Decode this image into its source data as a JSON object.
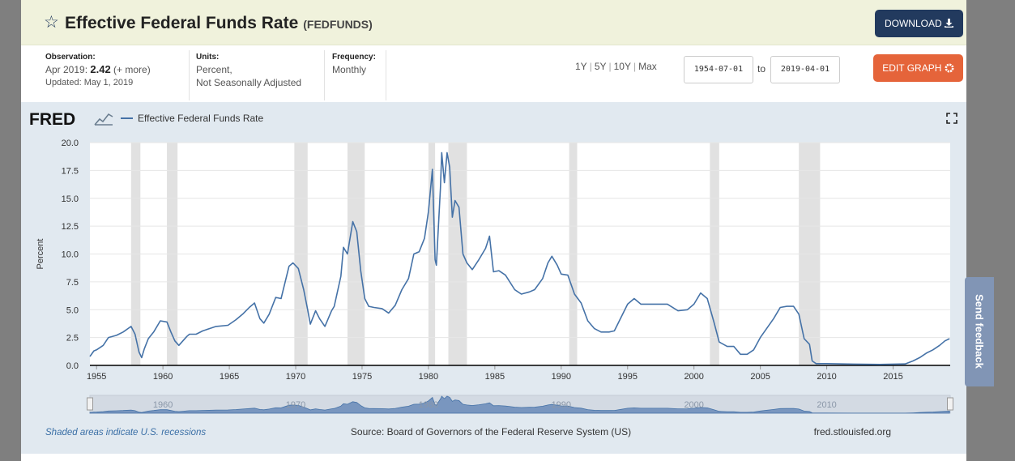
{
  "header": {
    "title": "Effective Federal Funds Rate",
    "series_id": "(FEDFUNDS)",
    "download_label": "DOWNLOAD"
  },
  "meta": {
    "observation_label": "Observation:",
    "observation_date": "Apr 2019:",
    "observation_value": "2.42",
    "more_label": "(+ more)",
    "updated": "Updated: May 1, 2019",
    "units_label": "Units:",
    "units_line1": "Percent,",
    "units_line2": "Not Seasonally Adjusted",
    "frequency_label": "Frequency:",
    "frequency_value": "Monthly"
  },
  "range": {
    "r1y": "1Y",
    "r5y": "5Y",
    "r10y": "10Y",
    "rmax": "Max",
    "start": "1954-07-01",
    "to_label": "to",
    "end": "2019-04-01"
  },
  "edit_label": "EDIT GRAPH",
  "feedback_label": "Send feedback",
  "footer": {
    "recession_note": "Shaded areas indicate U.S. recessions",
    "source": "Source: Board of Governors of the Federal Reserve System (US)",
    "site": "fred.stlouisfed.org"
  },
  "logo_text": "FRED",
  "colors": {
    "series": "#4572a7",
    "recession": "#e1e1e1",
    "download": "#223a5e",
    "edit": "#e5643a"
  },
  "chart_data": {
    "type": "line",
    "title": "Effective Federal Funds Rate",
    "ylabel": "Percent",
    "xlim": [
      1954.5,
      2019.3
    ],
    "ylim": [
      0,
      20
    ],
    "yticks": [
      0,
      2.5,
      5,
      7.5,
      10,
      12.5,
      15,
      17.5,
      20
    ],
    "ytick_labels": [
      "0.0",
      "2.5",
      "5.0",
      "7.5",
      "10.0",
      "12.5",
      "15.0",
      "17.5",
      "20.0"
    ],
    "xticks": [
      1955,
      1960,
      1965,
      1970,
      1975,
      1980,
      1985,
      1990,
      1995,
      2000,
      2005,
      2010,
      2015
    ],
    "navigator_labels": [
      1960,
      1970,
      1980,
      1990,
      2000,
      2010
    ],
    "legend": [
      "Effective Federal Funds Rate"
    ],
    "recessions": [
      [
        1957.6,
        1958.3
      ],
      [
        1960.3,
        1961.1
      ],
      [
        1969.9,
        1970.9
      ],
      [
        1973.9,
        1975.2
      ],
      [
        1980.0,
        1980.5
      ],
      [
        1981.5,
        1982.9
      ],
      [
        1990.6,
        1991.2
      ],
      [
        2001.2,
        2001.9
      ],
      [
        2007.9,
        2009.5
      ]
    ],
    "series": [
      {
        "name": "Effective Federal Funds Rate",
        "x": [
          1954.5,
          1954.8,
          1955.0,
          1955.5,
          1955.9,
          1956.5,
          1957.0,
          1957.6,
          1957.9,
          1958.2,
          1958.4,
          1958.6,
          1958.9,
          1959.3,
          1959.8,
          1960.3,
          1960.6,
          1960.9,
          1961.2,
          1961.5,
          1961.8,
          1962.0,
          1962.5,
          1963.0,
          1963.5,
          1964.0,
          1964.9,
          1965.5,
          1966.0,
          1966.5,
          1966.9,
          1967.3,
          1967.6,
          1968.0,
          1968.5,
          1968.9,
          1969.5,
          1969.8,
          1970.2,
          1970.6,
          1970.9,
          1971.1,
          1971.5,
          1971.8,
          1972.2,
          1972.7,
          1972.9,
          1973.4,
          1973.6,
          1973.9,
          1974.3,
          1974.6,
          1974.9,
          1975.2,
          1975.5,
          1975.9,
          1976.5,
          1977.0,
          1977.5,
          1978.0,
          1978.5,
          1978.9,
          1979.3,
          1979.7,
          1980.0,
          1980.3,
          1980.5,
          1980.6,
          1980.9,
          1981.0,
          1981.2,
          1981.4,
          1981.6,
          1981.8,
          1982.0,
          1982.3,
          1982.6,
          1982.9,
          1983.3,
          1983.8,
          1984.3,
          1984.6,
          1984.9,
          1985.3,
          1985.8,
          1986.5,
          1987.0,
          1987.6,
          1988.0,
          1988.6,
          1989.0,
          1989.3,
          1989.7,
          1990.0,
          1990.5,
          1991.0,
          1991.5,
          1992.0,
          1992.5,
          1993.0,
          1993.6,
          1994.0,
          1994.5,
          1995.0,
          1995.5,
          1996.0,
          1997.0,
          1998.0,
          1998.8,
          1999.5,
          2000.0,
          2000.5,
          2001.0,
          2001.5,
          2001.9,
          2002.5,
          2003.0,
          2003.5,
          2004.0,
          2004.5,
          2005.0,
          2006.0,
          2006.5,
          2007.0,
          2007.5,
          2007.9,
          2008.3,
          2008.7,
          2008.9,
          2009.2,
          2010.0,
          2012.0,
          2014.0,
          2015.9,
          2016.5,
          2017.0,
          2017.5,
          2018.0,
          2018.5,
          2018.9,
          2019.25
        ],
        "y": [
          0.8,
          1.3,
          1.4,
          1.8,
          2.5,
          2.7,
          3.0,
          3.5,
          2.8,
          1.2,
          0.7,
          1.5,
          2.4,
          3.0,
          4.0,
          3.9,
          3.0,
          2.2,
          1.8,
          2.2,
          2.6,
          2.8,
          2.8,
          3.1,
          3.3,
          3.5,
          3.6,
          4.1,
          4.6,
          5.2,
          5.6,
          4.2,
          3.8,
          4.6,
          6.1,
          6.0,
          8.9,
          9.2,
          8.7,
          6.8,
          5.0,
          3.7,
          4.9,
          4.2,
          3.5,
          4.9,
          5.3,
          8.0,
          10.6,
          10.0,
          12.9,
          12.0,
          8.5,
          6.0,
          5.3,
          5.2,
          5.1,
          4.7,
          5.4,
          6.8,
          7.8,
          10.0,
          10.2,
          11.4,
          13.8,
          17.6,
          9.5,
          9.0,
          15.9,
          19.1,
          16.4,
          19.1,
          17.8,
          13.3,
          14.8,
          14.2,
          10.0,
          9.2,
          8.6,
          9.5,
          10.5,
          11.6,
          8.4,
          8.5,
          8.1,
          6.8,
          6.4,
          6.6,
          6.8,
          7.8,
          9.2,
          9.8,
          9.0,
          8.2,
          8.1,
          6.4,
          5.6,
          4.0,
          3.3,
          3.0,
          3.0,
          3.1,
          4.3,
          5.5,
          6.0,
          5.5,
          5.5,
          5.5,
          4.9,
          5.0,
          5.5,
          6.5,
          6.0,
          3.9,
          2.1,
          1.7,
          1.7,
          1.0,
          1.0,
          1.4,
          2.5,
          4.2,
          5.2,
          5.3,
          5.3,
          4.6,
          2.4,
          1.9,
          0.4,
          0.16,
          0.16,
          0.12,
          0.09,
          0.13,
          0.4,
          0.7,
          1.1,
          1.4,
          1.8,
          2.2,
          2.4
        ]
      }
    ]
  }
}
